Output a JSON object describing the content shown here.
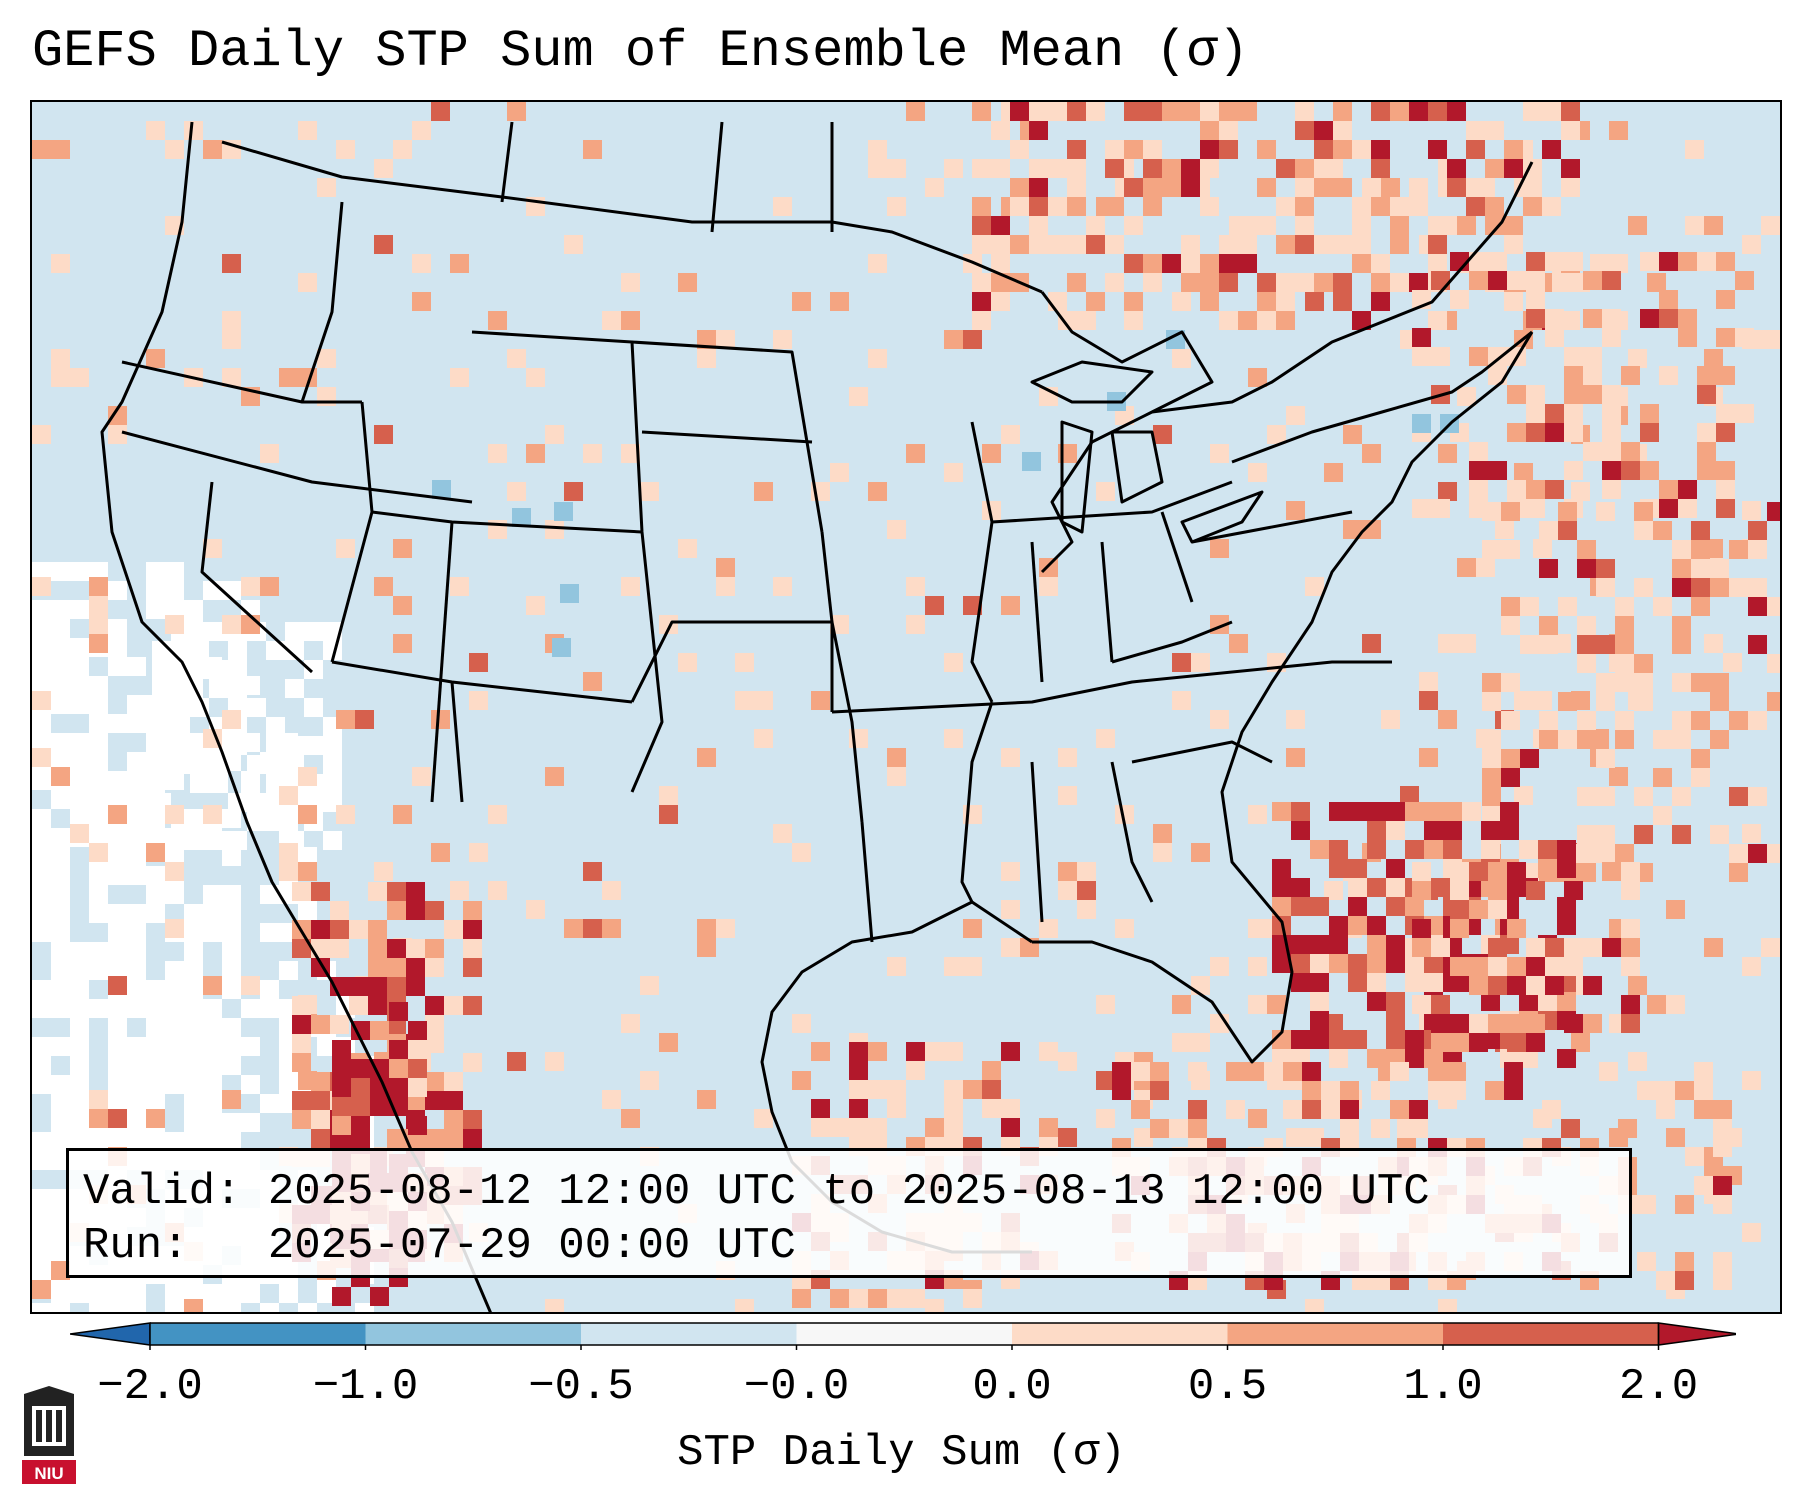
{
  "title": "GEFS Daily STP Sum of Ensemble Mean (σ)",
  "info": {
    "valid_label": "Valid:",
    "valid_text": "2025-08-12 12:00 UTC to 2025-08-13 12:00 UTC",
    "run_label": "Run:",
    "run_text": "2025-07-29 00:00 UTC"
  },
  "colorbar": {
    "label": "STP Daily Sum (σ)",
    "ticks": [
      "−2.0",
      "−1.0",
      "−0.5",
      "−0.0",
      "0.0",
      "0.5",
      "1.0",
      "2.0"
    ],
    "bins": [
      {
        "from": -2.0,
        "to": -1.0,
        "color": "#4393c3"
      },
      {
        "from": -1.0,
        "to": -0.5,
        "color": "#92c5de"
      },
      {
        "from": -0.5,
        "to": -0.0,
        "color": "#d1e5f0"
      },
      {
        "from": -0.0,
        "to": 0.0,
        "color": "#f7f7f7"
      },
      {
        "from": 0.0,
        "to": 0.5,
        "color": "#fddbc7"
      },
      {
        "from": 0.5,
        "to": 1.0,
        "color": "#f4a582"
      },
      {
        "from": 1.0,
        "to": 2.0,
        "color": "#d6604d"
      }
    ],
    "extend_min_color": "#2166ac",
    "extend_max_color": "#b2182b"
  },
  "colors": {
    "background": "#d1e5f0",
    "neutral": "#ffffff",
    "light_pos": "#fddbc7",
    "mid_pos": "#f4a582",
    "high_pos": "#d6604d",
    "extreme_pos": "#b2182b",
    "light_neg": "#92c5de",
    "border": "#000000"
  },
  "logo": {
    "name": "NIU"
  }
}
